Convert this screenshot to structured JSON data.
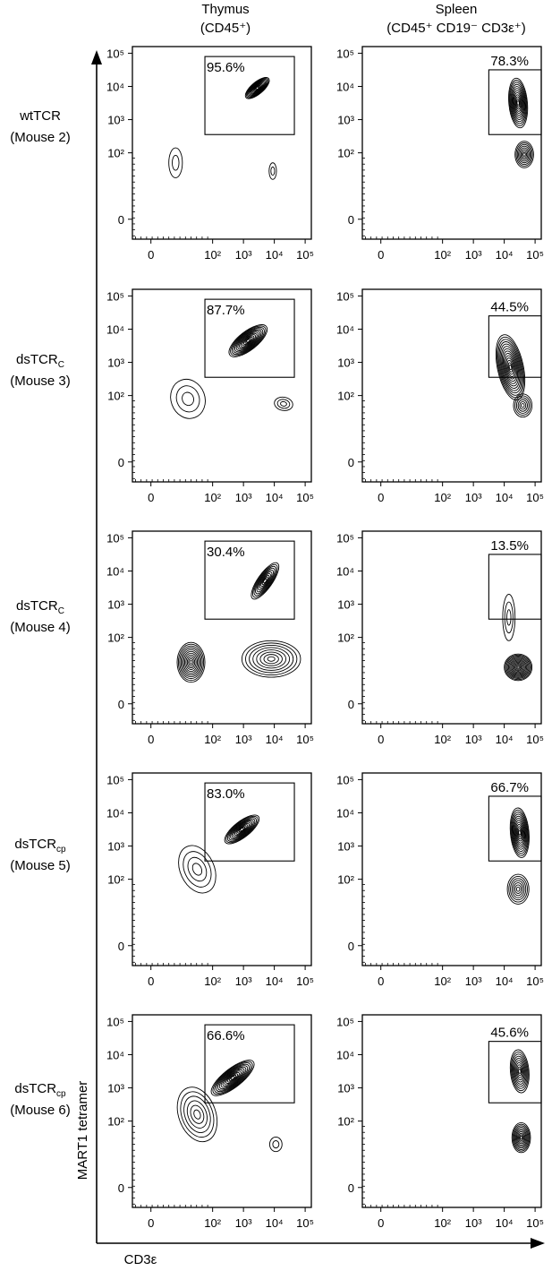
{
  "columns": [
    {
      "title": "Thymus",
      "subtitle": "(CD45⁺)"
    },
    {
      "title": "Spleen",
      "subtitle": "(CD45⁺ CD19⁻ CD3ε⁺)"
    }
  ],
  "rows": [
    {
      "name": "wtTCR",
      "name_sub": "",
      "mouse": "(Mouse 2)"
    },
    {
      "name": "dsTCR",
      "name_sub": "C",
      "mouse": "(Mouse 3)"
    },
    {
      "name": "dsTCR",
      "name_sub": "C",
      "mouse": "(Mouse 4)"
    },
    {
      "name": "dsTCR",
      "name_sub": "cp",
      "mouse": "(Mouse 5)"
    },
    {
      "name": "dsTCR",
      "name_sub": "cp",
      "mouse": "(Mouse 6)"
    }
  ],
  "axes": {
    "x_title": "CD3ε",
    "y_title": "MART1 tetramer",
    "tick_labels": [
      "0",
      "10²",
      "10³",
      "10⁴",
      "10⁵"
    ]
  },
  "colors": {
    "ink": "#000000",
    "background": "#ffffff"
  },
  "chart_data": [
    {
      "type": "contour",
      "tissue": "Thymus",
      "row": 0,
      "gate_percent": "95.6%",
      "xlim": [
        -0.6,
        5.2
      ],
      "ylim": [
        -0.6,
        5.2
      ],
      "gate": {
        "x": [
          1.75,
          4.65
        ],
        "y": [
          2.55,
          4.9
        ]
      },
      "populations": [
        {
          "cx": 3.45,
          "cy": 3.95,
          "sx": 0.48,
          "sy": 0.18,
          "rot": 40,
          "levels": 12
        },
        {
          "cx": 0.8,
          "cy": 1.7,
          "sx": 0.22,
          "sy": 0.45,
          "rot": 0,
          "levels": 2
        },
        {
          "cx": 3.95,
          "cy": 1.45,
          "sx": 0.12,
          "sy": 0.25,
          "rot": 0,
          "levels": 2
        }
      ]
    },
    {
      "type": "contour",
      "tissue": "Spleen",
      "row": 0,
      "gate_percent": "78.3%",
      "xlim": [
        -0.6,
        5.2
      ],
      "ylim": [
        -0.6,
        5.2
      ],
      "gate": {
        "x": [
          3.5,
          5.2
        ],
        "y": [
          2.55,
          4.5
        ]
      },
      "populations": [
        {
          "cx": 4.45,
          "cy": 3.5,
          "sx": 0.3,
          "sy": 0.75,
          "rot": 5,
          "levels": 12
        },
        {
          "cx": 4.65,
          "cy": 1.95,
          "sx": 0.3,
          "sy": 0.4,
          "rot": 0,
          "levels": 8
        }
      ]
    },
    {
      "type": "contour",
      "tissue": "Thymus",
      "row": 1,
      "gate_percent": "87.7%",
      "xlim": [
        -0.6,
        5.2
      ],
      "ylim": [
        -0.6,
        5.2
      ],
      "gate": {
        "x": [
          1.75,
          4.65
        ],
        "y": [
          2.55,
          4.9
        ]
      },
      "populations": [
        {
          "cx": 3.15,
          "cy": 3.65,
          "sx": 0.75,
          "sy": 0.28,
          "rot": 38,
          "levels": 13
        },
        {
          "cx": 1.2,
          "cy": 1.9,
          "sx": 0.55,
          "sy": 0.6,
          "rot": 20,
          "levels": 3
        },
        {
          "cx": 4.3,
          "cy": 1.75,
          "sx": 0.3,
          "sy": 0.2,
          "rot": -10,
          "levels": 3
        }
      ]
    },
    {
      "type": "contour",
      "tissue": "Spleen",
      "row": 1,
      "gate_percent": "44.5%",
      "xlim": [
        -0.6,
        5.2
      ],
      "ylim": [
        -0.6,
        5.2
      ],
      "gate": {
        "x": [
          3.5,
          5.2
        ],
        "y": [
          2.55,
          4.4
        ]
      },
      "populations": [
        {
          "cx": 4.2,
          "cy": 2.85,
          "sx": 0.42,
          "sy": 1.0,
          "rot": 12,
          "levels": 14
        },
        {
          "cx": 4.6,
          "cy": 1.7,
          "sx": 0.3,
          "sy": 0.35,
          "rot": 0,
          "levels": 6
        }
      ]
    },
    {
      "type": "contour",
      "tissue": "Thymus",
      "row": 2,
      "gate_percent": "30.4%",
      "xlim": [
        -0.6,
        5.2
      ],
      "ylim": [
        -0.6,
        5.2
      ],
      "gate": {
        "x": [
          1.75,
          4.65
        ],
        "y": [
          2.55,
          4.9
        ]
      },
      "populations": [
        {
          "cx": 3.7,
          "cy": 3.7,
          "sx": 0.7,
          "sy": 0.22,
          "rot": 55,
          "levels": 10
        },
        {
          "cx": 1.3,
          "cy": 1.25,
          "sx": 0.45,
          "sy": 0.6,
          "rot": 0,
          "levels": 11
        },
        {
          "cx": 3.9,
          "cy": 1.35,
          "sx": 0.95,
          "sy": 0.55,
          "rot": 0,
          "levels": 8
        }
      ]
    },
    {
      "type": "contour",
      "tissue": "Spleen",
      "row": 2,
      "gate_percent": "13.5%",
      "xlim": [
        -0.6,
        5.2
      ],
      "ylim": [
        -0.6,
        5.2
      ],
      "gate": {
        "x": [
          3.5,
          5.2
        ],
        "y": [
          2.55,
          4.5
        ]
      },
      "populations": [
        {
          "cx": 4.45,
          "cy": 1.1,
          "sx": 0.45,
          "sy": 0.4,
          "rot": 0,
          "levels": 13
        },
        {
          "cx": 4.15,
          "cy": 2.6,
          "sx": 0.2,
          "sy": 0.7,
          "rot": 0,
          "levels": 3
        }
      ]
    },
    {
      "type": "contour",
      "tissue": "Thymus",
      "row": 3,
      "gate_percent": "83.0%",
      "xlim": [
        -0.6,
        5.2
      ],
      "ylim": [
        -0.6,
        5.2
      ],
      "gate": {
        "x": [
          1.75,
          4.65
        ],
        "y": [
          2.55,
          4.9
        ]
      },
      "populations": [
        {
          "cx": 2.95,
          "cy": 3.5,
          "sx": 0.68,
          "sy": 0.24,
          "rot": 38,
          "levels": 12
        },
        {
          "cx": 1.5,
          "cy": 2.3,
          "sx": 0.55,
          "sy": 0.75,
          "rot": 25,
          "levels": 4
        }
      ]
    },
    {
      "type": "contour",
      "tissue": "Spleen",
      "row": 3,
      "gate_percent": "66.7%",
      "xlim": [
        -0.6,
        5.2
      ],
      "ylim": [
        -0.6,
        5.2
      ],
      "gate": {
        "x": [
          3.5,
          5.2
        ],
        "y": [
          2.55,
          4.5
        ]
      },
      "populations": [
        {
          "cx": 4.5,
          "cy": 3.4,
          "sx": 0.3,
          "sy": 0.75,
          "rot": 5,
          "levels": 12
        },
        {
          "cx": 4.45,
          "cy": 1.7,
          "sx": 0.35,
          "sy": 0.45,
          "rot": 0,
          "levels": 7
        }
      ]
    },
    {
      "type": "contour",
      "tissue": "Thymus",
      "row": 4,
      "gate_percent": "66.6%",
      "xlim": [
        -0.6,
        5.2
      ],
      "ylim": [
        -0.6,
        5.2
      ],
      "gate": {
        "x": [
          1.75,
          4.65
        ],
        "y": [
          2.55,
          4.9
        ]
      },
      "populations": [
        {
          "cx": 2.65,
          "cy": 3.3,
          "sx": 0.85,
          "sy": 0.28,
          "rot": 38,
          "levels": 13
        },
        {
          "cx": 1.5,
          "cy": 2.2,
          "sx": 0.6,
          "sy": 0.85,
          "rot": 20,
          "levels": 6
        },
        {
          "cx": 4.05,
          "cy": 1.3,
          "sx": 0.2,
          "sy": 0.22,
          "rot": 0,
          "levels": 2
        }
      ]
    },
    {
      "type": "contour",
      "tissue": "Spleen",
      "row": 4,
      "gate_percent": "45.6%",
      "xlim": [
        -0.6,
        5.2
      ],
      "ylim": [
        -0.6,
        5.2
      ],
      "gate": {
        "x": [
          3.5,
          5.2
        ],
        "y": [
          2.55,
          4.4
        ]
      },
      "populations": [
        {
          "cx": 4.5,
          "cy": 3.5,
          "sx": 0.3,
          "sy": 0.65,
          "rot": 5,
          "levels": 10
        },
        {
          "cx": 4.55,
          "cy": 1.5,
          "sx": 0.3,
          "sy": 0.45,
          "rot": 0,
          "levels": 10
        }
      ]
    }
  ]
}
